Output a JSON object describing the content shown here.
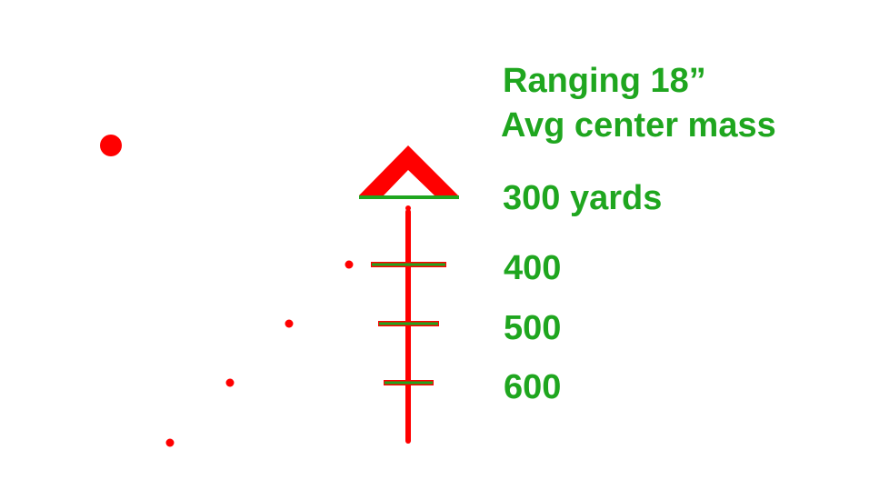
{
  "title_line1": "Ranging 18”",
  "title_line2": "Avg center mass",
  "ranges": [
    {
      "label": "300 yards"
    },
    {
      "label": "400"
    },
    {
      "label": "500"
    },
    {
      "label": "600"
    }
  ],
  "colors": {
    "reticle": "#ff0000",
    "text": "#1fa61f",
    "accent": "#1fa61f"
  }
}
